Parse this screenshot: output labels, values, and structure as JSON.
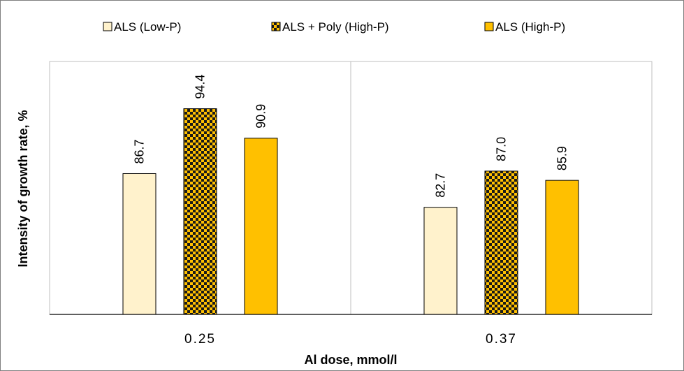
{
  "chart_data": {
    "type": "bar",
    "title": "",
    "xlabel": "Al dose, mmol/l",
    "ylabel": "Intensity of  growth rate, %",
    "categories": [
      "0.25",
      "0.37"
    ],
    "ylim": [
      70,
      100
    ],
    "grid": false,
    "legend_position": "top",
    "value_format": "0.0",
    "series": [
      {
        "name": "ALS (Low-P)",
        "values": [
          86.7,
          82.7
        ],
        "color": "#fff2cc",
        "pattern": "none"
      },
      {
        "name": "ALS + Poly (High-P)",
        "values": [
          94.4,
          87.0
        ],
        "color": "#ffc000",
        "pattern": "checker"
      },
      {
        "name": "ALS (High-P)",
        "values": [
          90.9,
          85.9
        ],
        "color": "#ffc000",
        "pattern": "none"
      }
    ]
  }
}
